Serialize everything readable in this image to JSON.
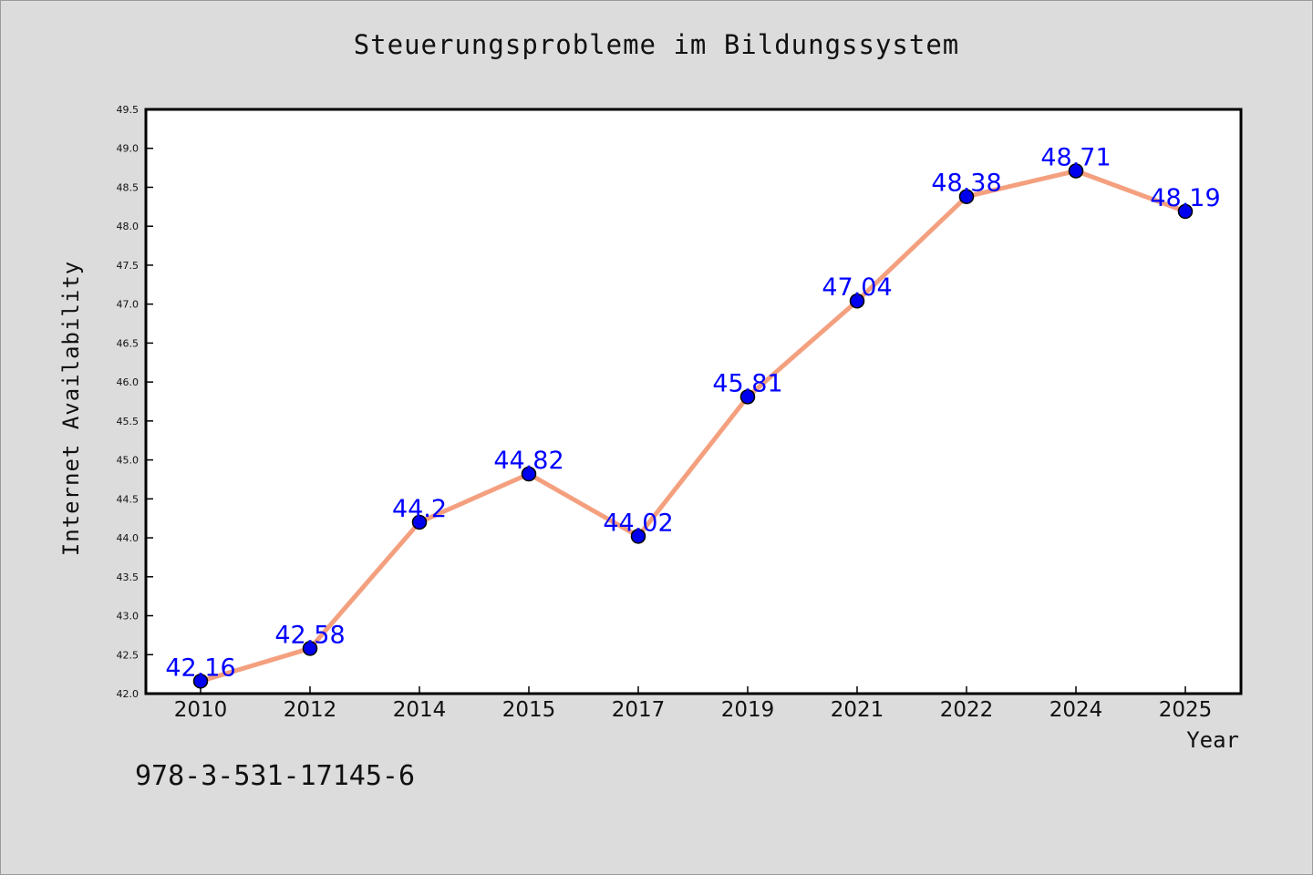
{
  "chart_data": {
    "type": "line",
    "title": "Steuerungsprobleme im Bildungssystem",
    "xlabel": "Year",
    "ylabel": "Internet Availability",
    "categories": [
      "2010",
      "2012",
      "2014",
      "2015",
      "2017",
      "2019",
      "2021",
      "2022",
      "2024",
      "2025"
    ],
    "values": [
      42.16,
      42.58,
      44.2,
      44.82,
      44.02,
      45.81,
      47.04,
      48.38,
      48.71,
      48.19
    ],
    "data_labels": [
      "42.16",
      "42.58",
      "44.2",
      "44.82",
      "44.02",
      "45.81",
      "47.04",
      "48.38",
      "48.71",
      "48.19"
    ],
    "ylim": [
      42.0,
      49.5
    ],
    "yticks": [
      "42.0",
      "42.5",
      "43.0",
      "43.5",
      "44.0",
      "44.5",
      "45.0",
      "45.5",
      "46.0",
      "46.5",
      "47.0",
      "47.5",
      "48.0",
      "48.5",
      "49.0",
      "49.5"
    ],
    "grid": false,
    "line_color": "#f4a07f",
    "marker_color": "#0000ee",
    "label_color": "#0000ff"
  },
  "annotation": {
    "isbn": "978-3-531-17145-6"
  }
}
